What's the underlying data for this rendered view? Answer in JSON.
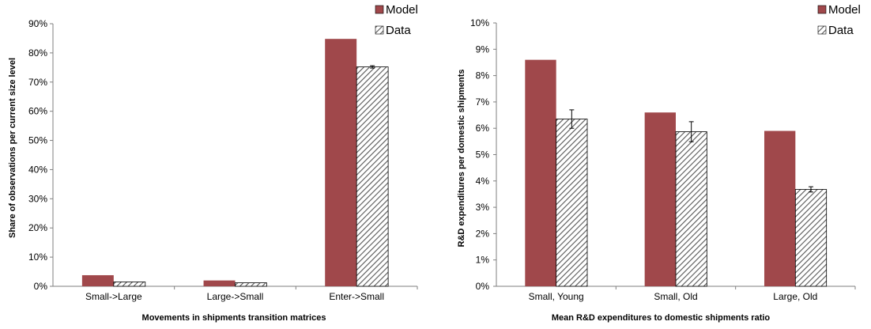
{
  "legend": {
    "model": "Model",
    "data": "Data"
  },
  "colors": {
    "model": "#a0484b",
    "data_hatch": "#555555",
    "axis": "#7f7f7f"
  },
  "chart_data": [
    {
      "type": "bar",
      "categories": [
        "Small->Large",
        "Large->Small",
        "Enter->Small"
      ],
      "series": [
        {
          "name": "Model",
          "values": [
            3.8,
            2.0,
            84.8
          ]
        },
        {
          "name": "Data",
          "values": [
            1.5,
            1.2,
            75.2
          ],
          "error": [
            0,
            0,
            0.4
          ]
        }
      ],
      "xlabel": "Movements in shipments transition matrices",
      "ylabel": "Share of observations per current size level",
      "ylim": [
        0,
        90
      ],
      "yticks": [
        "0%",
        "10%",
        "20%",
        "30%",
        "40%",
        "50%",
        "60%",
        "70%",
        "80%",
        "90%"
      ],
      "legend_position": "top-right",
      "grid": false
    },
    {
      "type": "bar",
      "categories": [
        "Small, Young",
        "Small, Old",
        "Large, Old"
      ],
      "series": [
        {
          "name": "Model",
          "values": [
            8.6,
            6.6,
            5.9
          ]
        },
        {
          "name": "Data",
          "values": [
            6.35,
            5.87,
            3.68
          ],
          "error": [
            0.35,
            0.38,
            0.1
          ]
        }
      ],
      "xlabel": "Mean R&D expenditures to domestic shipments ratio",
      "ylabel": "R&D expenditures per domestic shipments",
      "ylim": [
        0,
        10
      ],
      "yticks": [
        "0%",
        "1%",
        "2%",
        "3%",
        "4%",
        "5%",
        "6%",
        "7%",
        "8%",
        "9%",
        "10%"
      ],
      "legend_position": "top-right",
      "grid": false
    }
  ]
}
